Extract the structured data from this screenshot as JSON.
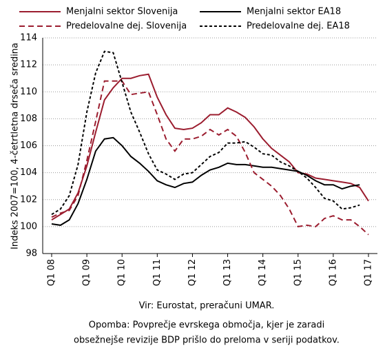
{
  "chart_data": {
    "type": "line",
    "ylabel": "Indeks 2007=100, 4-četrtletna drseča sredina",
    "categories": [
      "Q1 08",
      null,
      null,
      null,
      "Q1 09",
      null,
      null,
      null,
      "Q1 10",
      null,
      null,
      null,
      "Q1 11",
      null,
      null,
      null,
      "Q1 12",
      null,
      null,
      null,
      "Q1 13",
      null,
      null,
      null,
      "Q1 14",
      null,
      null,
      null,
      "Q1 15",
      null,
      null,
      null,
      "Q1 16",
      null,
      null,
      null,
      "Q1 17"
    ],
    "series": [
      {
        "name": "Menjalni sektor Slovenija",
        "color": "#9b1c2e",
        "dashed": false,
        "values": [
          100.5,
          100.9,
          101.3,
          102.5,
          104.5,
          107.0,
          109.4,
          110.3,
          111.0,
          111.0,
          111.2,
          111.3,
          109.6,
          108.3,
          107.3,
          107.2,
          107.3,
          107.7,
          108.3,
          108.3,
          108.8,
          108.5,
          108.1,
          107.4,
          106.5,
          105.8,
          105.3,
          104.8,
          104.0,
          103.9,
          103.6,
          103.5,
          103.4,
          103.3,
          103.2,
          102.9,
          101.9
        ]
      },
      {
        "name": "Menjalni sektor EA18",
        "color": "#000000",
        "dashed": false,
        "values": [
          100.2,
          100.1,
          100.5,
          101.7,
          103.5,
          105.6,
          106.5,
          106.6,
          106.0,
          105.2,
          104.7,
          104.1,
          103.4,
          103.1,
          102.9,
          103.2,
          103.3,
          103.8,
          104.2,
          104.4,
          104.7,
          104.6,
          104.6,
          104.5,
          104.4,
          104.4,
          104.3,
          104.2,
          104.1,
          103.8,
          103.4,
          103.1,
          103.1,
          102.8,
          103.0,
          103.1,
          null
        ]
      },
      {
        "name": "Predelovalne dej. Slovenija",
        "color": "#9b1c2e",
        "dashed": true,
        "values": [
          100.7,
          101.0,
          101.2,
          102.3,
          104.9,
          107.8,
          110.8,
          110.8,
          110.8,
          109.8,
          109.9,
          110.0,
          108.3,
          106.5,
          105.6,
          106.5,
          106.5,
          106.7,
          107.2,
          106.8,
          107.2,
          106.7,
          105.5,
          104.0,
          103.5,
          103.0,
          102.3,
          101.3,
          100.0,
          100.1,
          100.0,
          100.6,
          100.8,
          100.5,
          100.5,
          100.0,
          99.4
        ]
      },
      {
        "name": "Predelovalne dej. EA18",
        "color": "#000000",
        "dashed": true,
        "values": [
          100.9,
          101.3,
          102.3,
          104.6,
          108.5,
          111.4,
          113.0,
          112.9,
          110.7,
          108.5,
          107.0,
          105.4,
          104.2,
          103.9,
          103.5,
          103.9,
          104.0,
          104.6,
          105.2,
          105.5,
          106.2,
          106.2,
          106.3,
          105.9,
          105.4,
          105.3,
          104.8,
          104.5,
          104.1,
          103.6,
          102.9,
          102.1,
          101.9,
          101.3,
          101.4,
          101.6,
          null
        ]
      }
    ],
    "ylim": [
      98,
      114
    ],
    "yticks": [
      98,
      100,
      102,
      104,
      106,
      108,
      110,
      112,
      114
    ],
    "grid": true,
    "notes": [
      "Vir: Eurostat, preračuni UMAR.",
      "Opomba: Povprečje evrskega območja, kjer je zaradi",
      "obsežnejše revizije BDP prišlo do preloma v seriji podatkov."
    ]
  }
}
